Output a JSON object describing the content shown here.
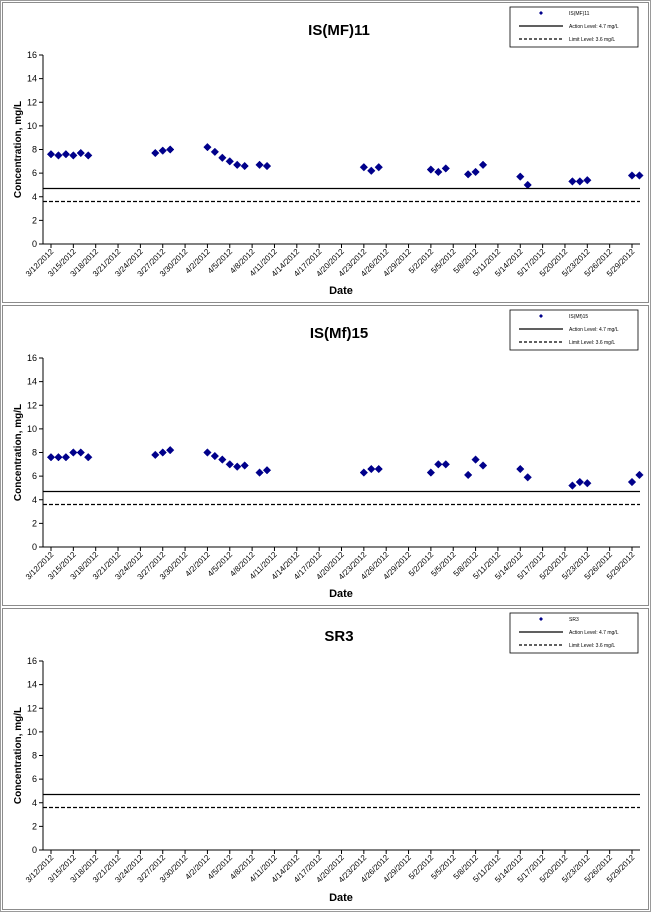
{
  "dates": [
    "3/12/2012",
    "3/15/2012",
    "3/18/2012",
    "3/21/2012",
    "3/24/2012",
    "3/27/2012",
    "3/30/2012",
    "4/2/2012",
    "4/5/2012",
    "4/8/2012",
    "4/11/2012",
    "4/14/2012",
    "4/17/2012",
    "4/20/2012",
    "4/23/2012",
    "4/26/2012",
    "4/29/2012",
    "5/2/2012",
    "5/5/2012",
    "5/8/2012",
    "5/11/2012",
    "5/14/2012",
    "5/17/2012",
    "5/20/2012",
    "5/23/2012",
    "5/26/2012",
    "5/29/2012"
  ],
  "chart_data": [
    {
      "type": "scatter",
      "title": "IS(MF)11",
      "xlabel": "Date",
      "ylabel": "Concentration, mg/L",
      "ylim": [
        0,
        16
      ],
      "yticks": [
        0,
        2,
        4,
        6,
        8,
        10,
        12,
        14,
        16
      ],
      "grid": false,
      "legend_position": "top-right",
      "marker_color": "#00008B",
      "series": [
        {
          "name": "IS(MF)11",
          "points": [
            {
              "x": "3/12/2012",
              "y": 7.6
            },
            {
              "x": "3/13/2012",
              "y": 7.5
            },
            {
              "x": "3/14/2012",
              "y": 7.6
            },
            {
              "x": "3/15/2012",
              "y": 7.5
            },
            {
              "x": "3/16/2012",
              "y": 7.7
            },
            {
              "x": "3/17/2012",
              "y": 7.5
            },
            {
              "x": "3/26/2012",
              "y": 7.7
            },
            {
              "x": "3/27/2012",
              "y": 7.9
            },
            {
              "x": "3/28/2012",
              "y": 8.0
            },
            {
              "x": "4/2/2012",
              "y": 8.2
            },
            {
              "x": "4/3/2012",
              "y": 7.8
            },
            {
              "x": "4/4/2012",
              "y": 7.3
            },
            {
              "x": "4/5/2012",
              "y": 7.0
            },
            {
              "x": "4/6/2012",
              "y": 6.7
            },
            {
              "x": "4/7/2012",
              "y": 6.6
            },
            {
              "x": "4/9/2012",
              "y": 6.7
            },
            {
              "x": "4/10/2012",
              "y": 6.6
            },
            {
              "x": "4/23/2012",
              "y": 6.5
            },
            {
              "x": "4/24/2012",
              "y": 6.2
            },
            {
              "x": "4/25/2012",
              "y": 6.5
            },
            {
              "x": "5/2/2012",
              "y": 6.3
            },
            {
              "x": "5/3/2012",
              "y": 6.1
            },
            {
              "x": "5/4/2012",
              "y": 6.4
            },
            {
              "x": "5/7/2012",
              "y": 5.9
            },
            {
              "x": "5/8/2012",
              "y": 6.1
            },
            {
              "x": "5/9/2012",
              "y": 6.7
            },
            {
              "x": "5/14/2012",
              "y": 5.7
            },
            {
              "x": "5/15/2012",
              "y": 5.0
            },
            {
              "x": "5/21/2012",
              "y": 5.3
            },
            {
              "x": "5/22/2012",
              "y": 5.3
            },
            {
              "x": "5/23/2012",
              "y": 5.4
            },
            {
              "x": "5/29/2012",
              "y": 5.8
            },
            {
              "x": "5/30/2012",
              "y": 5.8
            }
          ]
        },
        {
          "name": "Action Level: 4.7 mg/L",
          "type": "hline",
          "y": 4.7,
          "style": "solid"
        },
        {
          "name": "Limit Level: 3.6 mg/L",
          "type": "hline",
          "y": 3.6,
          "style": "dashed"
        }
      ]
    },
    {
      "type": "scatter",
      "title": "IS(Mf)15",
      "xlabel": "Date",
      "ylabel": "Concentration, mg/L",
      "ylim": [
        0,
        16
      ],
      "yticks": [
        0,
        2,
        4,
        6,
        8,
        10,
        12,
        14,
        16
      ],
      "grid": false,
      "legend_position": "top-right",
      "marker_color": "#00008B",
      "series": [
        {
          "name": "IS(Mf)15",
          "points": [
            {
              "x": "3/12/2012",
              "y": 7.6
            },
            {
              "x": "3/13/2012",
              "y": 7.6
            },
            {
              "x": "3/14/2012",
              "y": 7.6
            },
            {
              "x": "3/15/2012",
              "y": 8.0
            },
            {
              "x": "3/16/2012",
              "y": 8.0
            },
            {
              "x": "3/17/2012",
              "y": 7.6
            },
            {
              "x": "3/26/2012",
              "y": 7.8
            },
            {
              "x": "3/27/2012",
              "y": 8.0
            },
            {
              "x": "3/28/2012",
              "y": 8.2
            },
            {
              "x": "4/2/2012",
              "y": 8.0
            },
            {
              "x": "4/3/2012",
              "y": 7.7
            },
            {
              "x": "4/4/2012",
              "y": 7.4
            },
            {
              "x": "4/5/2012",
              "y": 7.0
            },
            {
              "x": "4/6/2012",
              "y": 6.8
            },
            {
              "x": "4/7/2012",
              "y": 6.9
            },
            {
              "x": "4/9/2012",
              "y": 6.3
            },
            {
              "x": "4/10/2012",
              "y": 6.5
            },
            {
              "x": "4/23/2012",
              "y": 6.3
            },
            {
              "x": "4/24/2012",
              "y": 6.6
            },
            {
              "x": "4/25/2012",
              "y": 6.6
            },
            {
              "x": "5/2/2012",
              "y": 6.3
            },
            {
              "x": "5/3/2012",
              "y": 7.0
            },
            {
              "x": "5/4/2012",
              "y": 7.0
            },
            {
              "x": "5/7/2012",
              "y": 6.1
            },
            {
              "x": "5/8/2012",
              "y": 7.4
            },
            {
              "x": "5/9/2012",
              "y": 6.9
            },
            {
              "x": "5/14/2012",
              "y": 6.6
            },
            {
              "x": "5/15/2012",
              "y": 5.9
            },
            {
              "x": "5/21/2012",
              "y": 5.2
            },
            {
              "x": "5/22/2012",
              "y": 5.5
            },
            {
              "x": "5/23/2012",
              "y": 5.4
            },
            {
              "x": "5/29/2012",
              "y": 5.5
            },
            {
              "x": "5/30/2012",
              "y": 6.1
            }
          ]
        },
        {
          "name": "Action Level: 4.7 mg/L",
          "type": "hline",
          "y": 4.7,
          "style": "solid"
        },
        {
          "name": "Limit Level: 3.6 mg/L",
          "type": "hline",
          "y": 3.6,
          "style": "dashed"
        }
      ]
    },
    {
      "type": "scatter",
      "title": "SR3",
      "xlabel": "Date",
      "ylabel": "Concentration, mg/L",
      "ylim": [
        0,
        16
      ],
      "yticks": [
        0,
        2,
        4,
        6,
        8,
        10,
        12,
        14,
        16
      ],
      "grid": false,
      "legend_position": "top-right",
      "marker_color": "#00008B",
      "series": [
        {
          "name": "SR3",
          "points": []
        },
        {
          "name": "Action Level: 4.7 mg/L",
          "type": "hline",
          "y": 4.7,
          "style": "solid"
        },
        {
          "name": "Limit Level: 3.6 mg/L",
          "type": "hline",
          "y": 3.6,
          "style": "dashed"
        }
      ]
    }
  ]
}
